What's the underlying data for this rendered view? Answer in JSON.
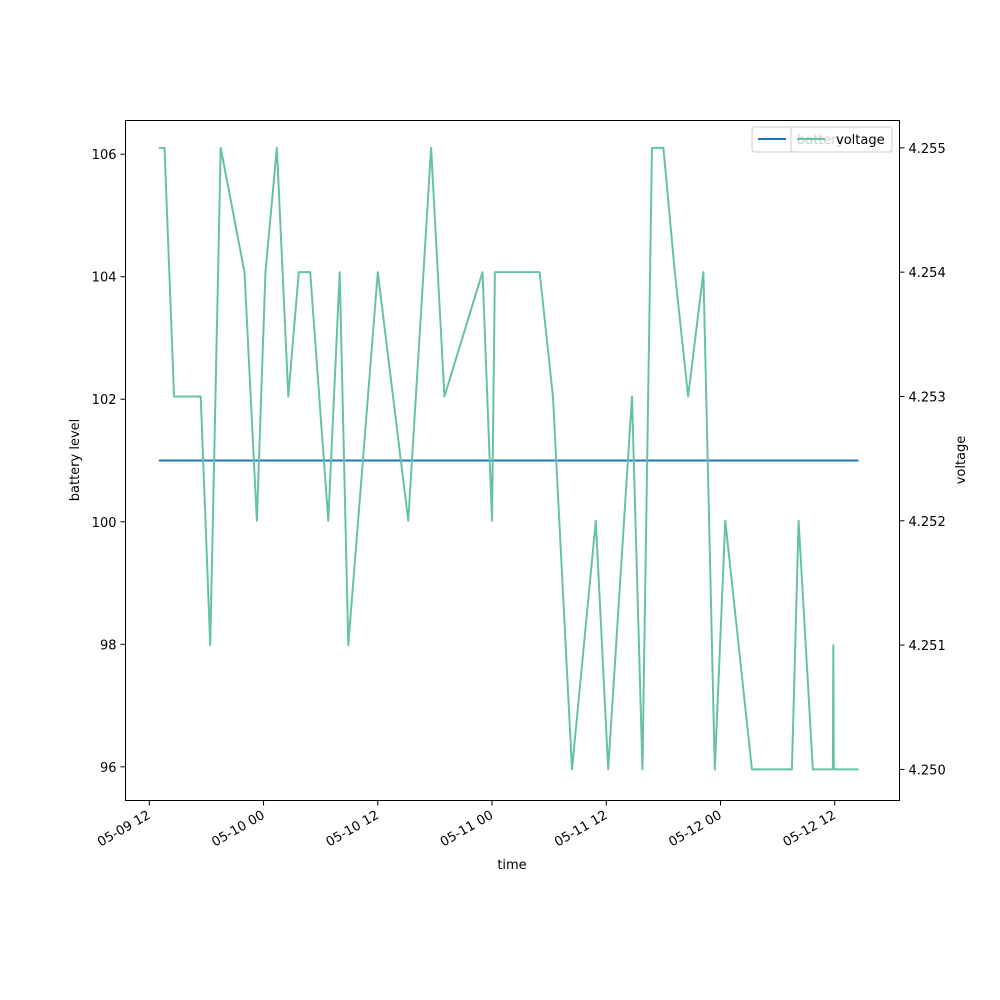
{
  "chart_data": {
    "type": "line",
    "xlabel": "time",
    "ylabel_left": "battery level",
    "ylabel_right": "voltage",
    "x_ticks": [
      "05-09 12",
      "05-10 00",
      "05-10 12",
      "05-11 00",
      "05-11 12",
      "05-12 00",
      "05-12 12"
    ],
    "x_tick_hours": [
      12,
      24,
      36,
      48,
      60,
      72,
      84
    ],
    "xlim_hours": [
      9.5,
      90.8
    ],
    "y_left": {
      "ylim": [
        95.45,
        106.55
      ],
      "ticks": [
        96,
        98,
        100,
        102,
        104,
        106
      ]
    },
    "y_right": {
      "ylim": [
        4.24975,
        4.25522
      ],
      "ticks": [
        "4.250",
        "4.251",
        "4.252",
        "4.253",
        "4.254",
        "4.255"
      ]
    },
    "legend_placement": "top-right",
    "grid": false,
    "series": [
      {
        "name": "battery",
        "axis": "left",
        "color": "#1f77b4",
        "x_hours": [
          13.0,
          86.5
        ],
        "values": [
          101,
          101
        ]
      },
      {
        "name": "voltage",
        "axis": "right",
        "color": "#66c2a5",
        "x_hours": [
          13.0,
          13.6,
          14.6,
          17.4,
          18.4,
          19.5,
          22.0,
          23.3,
          24.2,
          25.4,
          26.6,
          27.7,
          28.9,
          30.8,
          32.0,
          32.9,
          36.0,
          39.2,
          41.6,
          43.0,
          47.0,
          48.0,
          48.3,
          53.0,
          54.4,
          56.4,
          58.9,
          60.2,
          62.7,
          63.8,
          64.8,
          66.0,
          67.2,
          68.6,
          70.2,
          71.4,
          72.5,
          75.3,
          79.5,
          80.2,
          81.7,
          83.8,
          83.85,
          83.9,
          86.5
        ],
        "values": [
          4.255,
          4.255,
          4.253,
          4.253,
          4.251,
          4.255,
          4.254,
          4.252,
          4.254,
          4.255,
          4.253,
          4.254,
          4.254,
          4.252,
          4.254,
          4.251,
          4.254,
          4.252,
          4.255,
          4.253,
          4.254,
          4.252,
          4.254,
          4.254,
          4.253,
          4.25,
          4.252,
          4.25,
          4.253,
          4.25,
          4.255,
          4.255,
          4.254,
          4.253,
          4.254,
          4.25,
          4.252,
          4.25,
          4.25,
          4.252,
          4.25,
          4.25,
          4.251,
          4.25,
          4.25
        ]
      }
    ]
  }
}
